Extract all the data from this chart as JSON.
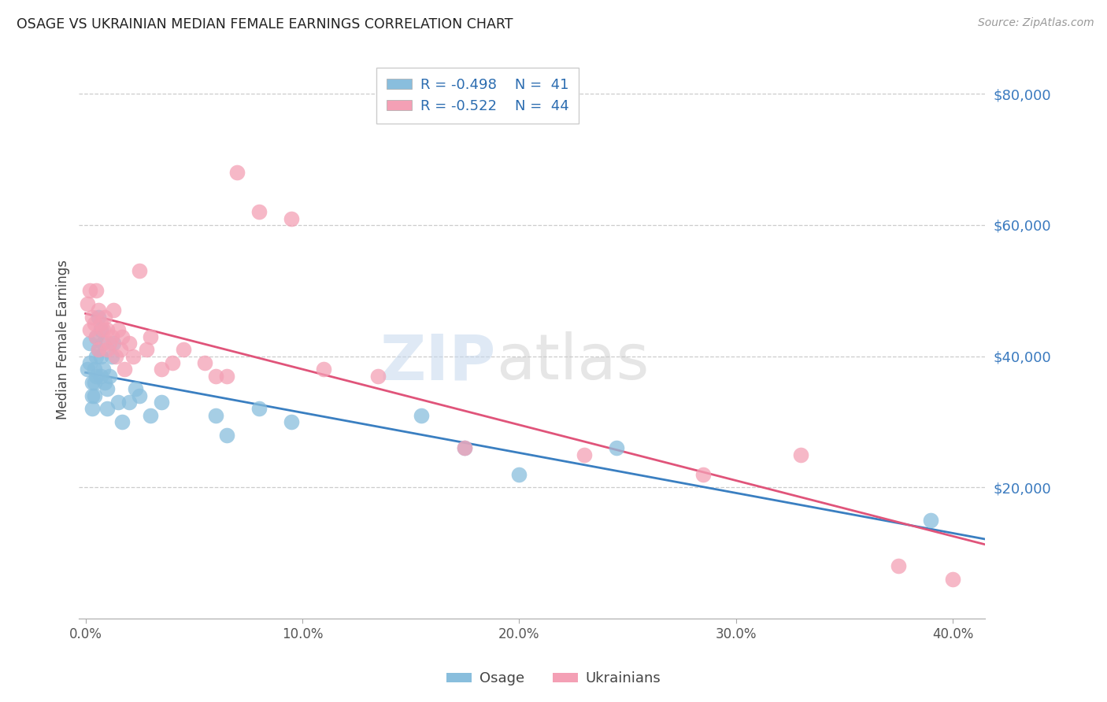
{
  "title": "OSAGE VS UKRAINIAN MEDIAN FEMALE EARNINGS CORRELATION CHART",
  "source": "Source: ZipAtlas.com",
  "ylabel": "Median Female Earnings",
  "xlabel_ticks": [
    "0.0%",
    "10.0%",
    "20.0%",
    "30.0%",
    "40.0%"
  ],
  "xlabel_vals": [
    0.0,
    0.1,
    0.2,
    0.3,
    0.4
  ],
  "ytick_labels": [
    "$20,000",
    "$40,000",
    "$60,000",
    "$80,000"
  ],
  "ytick_vals": [
    20000,
    40000,
    60000,
    80000
  ],
  "ylim": [
    0,
    85000
  ],
  "xlim": [
    -0.003,
    0.415
  ],
  "osage_color": "#89bedd",
  "ukrainian_color": "#f4a0b5",
  "osage_line_color": "#3a7fc1",
  "ukrainian_line_color": "#e0547a",
  "legend_R_osage": "R = -0.498",
  "legend_N_osage": "N =  41",
  "legend_R_ukrainian": "R = -0.522",
  "legend_N_ukrainian": "N =  44",
  "watermark_ZIP": "ZIP",
  "watermark_atlas": "atlas",
  "osage_x": [
    0.001,
    0.002,
    0.002,
    0.003,
    0.003,
    0.003,
    0.004,
    0.004,
    0.004,
    0.005,
    0.005,
    0.005,
    0.006,
    0.006,
    0.007,
    0.007,
    0.007,
    0.008,
    0.008,
    0.009,
    0.01,
    0.01,
    0.011,
    0.012,
    0.013,
    0.015,
    0.017,
    0.02,
    0.023,
    0.025,
    0.03,
    0.035,
    0.06,
    0.065,
    0.08,
    0.095,
    0.155,
    0.175,
    0.2,
    0.245,
    0.39
  ],
  "osage_y": [
    38000,
    42000,
    39000,
    36000,
    34000,
    32000,
    38000,
    36000,
    34000,
    43000,
    40000,
    37000,
    46000,
    41000,
    44000,
    40000,
    37000,
    42000,
    38000,
    36000,
    35000,
    32000,
    37000,
    40000,
    42000,
    33000,
    30000,
    33000,
    35000,
    34000,
    31000,
    33000,
    31000,
    28000,
    32000,
    30000,
    31000,
    26000,
    22000,
    26000,
    15000
  ],
  "ukrainian_x": [
    0.001,
    0.002,
    0.002,
    0.003,
    0.004,
    0.005,
    0.005,
    0.006,
    0.006,
    0.007,
    0.008,
    0.009,
    0.01,
    0.01,
    0.011,
    0.012,
    0.013,
    0.014,
    0.015,
    0.016,
    0.017,
    0.018,
    0.02,
    0.022,
    0.025,
    0.028,
    0.03,
    0.035,
    0.04,
    0.045,
    0.055,
    0.06,
    0.065,
    0.07,
    0.08,
    0.095,
    0.11,
    0.135,
    0.175,
    0.23,
    0.285,
    0.33,
    0.375,
    0.4
  ],
  "ukrainian_y": [
    48000,
    50000,
    44000,
    46000,
    45000,
    50000,
    43000,
    47000,
    41000,
    45000,
    44000,
    46000,
    44000,
    41000,
    42000,
    43000,
    47000,
    40000,
    44000,
    41000,
    43000,
    38000,
    42000,
    40000,
    53000,
    41000,
    43000,
    38000,
    39000,
    41000,
    39000,
    37000,
    37000,
    68000,
    62000,
    61000,
    38000,
    37000,
    26000,
    25000,
    22000,
    25000,
    8000,
    6000
  ]
}
